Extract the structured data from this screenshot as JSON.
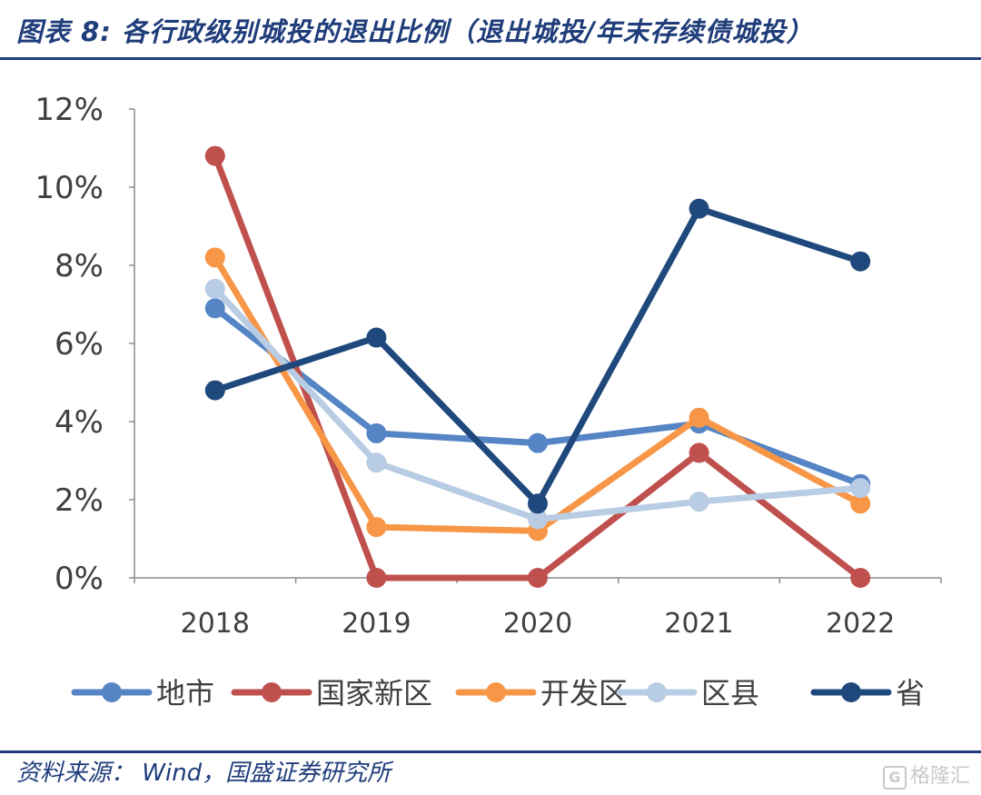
{
  "header": {
    "title": "图表 8: 各行政级别城投的退出比例（退出城投/年末存续债城投）"
  },
  "footer": {
    "source": "资料来源： Wind，国盛证券研究所",
    "watermark": "格隆汇"
  },
  "chart_data": {
    "type": "line",
    "categories": [
      "2018",
      "2019",
      "2020",
      "2021",
      "2022"
    ],
    "ylim": [
      0,
      12
    ],
    "yticks": [
      0,
      2,
      4,
      6,
      8,
      10,
      12
    ],
    "ytick_labels": [
      "0%",
      "2%",
      "4%",
      "6%",
      "8%",
      "10%",
      "12%"
    ],
    "grid": false,
    "legend_position": "bottom",
    "series": [
      {
        "name": "地市",
        "color": "#5585c5",
        "values": [
          6.9,
          3.7,
          3.45,
          3.95,
          2.4
        ]
      },
      {
        "name": "国家新区",
        "color": "#c0504d",
        "values": [
          10.8,
          0.0,
          0.0,
          3.2,
          0.0
        ]
      },
      {
        "name": "开发区",
        "color": "#f79646",
        "values": [
          8.2,
          1.3,
          1.2,
          4.1,
          1.9
        ]
      },
      {
        "name": "区县",
        "color": "#b8cce4",
        "values": [
          7.4,
          2.95,
          1.5,
          1.95,
          2.3
        ]
      },
      {
        "name": "省",
        "color": "#1f497d",
        "values": [
          4.8,
          6.15,
          1.9,
          9.45,
          8.1
        ]
      }
    ]
  }
}
